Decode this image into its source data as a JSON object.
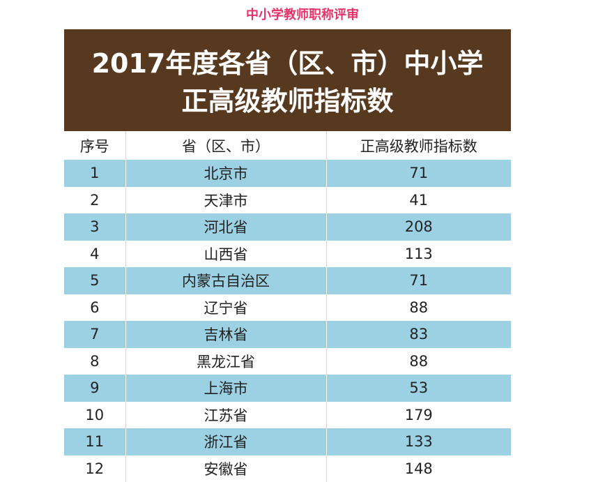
{
  "caption": "中小学教师职称评审",
  "banner": {
    "line1": "2017年度各省（区、市）中小学",
    "line2": "正高级教师指标数"
  },
  "table": {
    "headers": [
      "序号",
      "省（区、市）",
      "正高级教师指标数"
    ],
    "rows": [
      [
        "1",
        "北京市",
        "71"
      ],
      [
        "2",
        "天津市",
        "41"
      ],
      [
        "3",
        "河北省",
        "208"
      ],
      [
        "4",
        "山西省",
        "113"
      ],
      [
        "5",
        "内蒙古自治区",
        "71"
      ],
      [
        "6",
        "辽宁省",
        "88"
      ],
      [
        "7",
        "吉林省",
        "83"
      ],
      [
        "8",
        "黑龙江省",
        "88"
      ],
      [
        "9",
        "上海市",
        "53"
      ],
      [
        "10",
        "江苏省",
        "179"
      ],
      [
        "11",
        "浙江省",
        "133"
      ],
      [
        "12",
        "安徽省",
        "148"
      ]
    ]
  },
  "colors": {
    "caption": "#e8336a",
    "banner_bg": "#57391f",
    "row_stripe": "#9bd1e3"
  }
}
